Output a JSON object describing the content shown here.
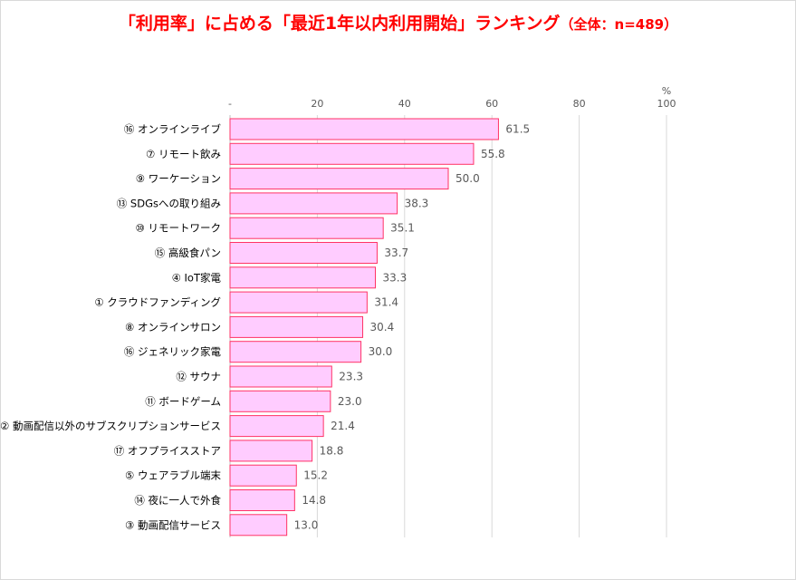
{
  "colors": {
    "title": "#ff0000",
    "bar_fill": "#ffccff",
    "bar_stroke": "#ff3366",
    "grid": "#d9d9d9"
  },
  "chart_data": {
    "type": "bar",
    "orientation": "horizontal",
    "title": "「利用率」に占める「最近1年以内利用開始」ランキング",
    "subtitle": "（全体：n=489）",
    "unit_label": "%",
    "xlim": [
      0,
      100
    ],
    "tick_labels": [
      "-",
      "20",
      "40",
      "60",
      "80",
      "100"
    ],
    "grid": true,
    "categories": [
      "⑯ オンラインライブ",
      "⑦ リモート飲み",
      "⑨ ワーケーション",
      "⑬ SDGsへの取り組み",
      "⑩ リモートワーク",
      "⑮ 高級食パン",
      "④ IoT家電",
      "① クラウドファンディング",
      "⑧ オンラインサロン",
      "⑯ ジェネリック家電",
      "⑫ サウナ",
      "⑪ ボードゲーム",
      "② 動画配信以外のサブスクリプションサービス",
      "⑰ オフプライスストア",
      "⑤ ウェアラブル端末",
      "⑭ 夜に一人で外食",
      "③ 動画配信サービス"
    ],
    "values": [
      61.5,
      55.8,
      50.0,
      38.3,
      35.1,
      33.7,
      33.3,
      31.4,
      30.4,
      30.0,
      23.3,
      23.0,
      21.4,
      18.8,
      15.2,
      14.8,
      13.0
    ],
    "value_labels": [
      "61.5",
      "55.8",
      "50.0",
      "38.3",
      "35.1",
      "33.7",
      "33.3",
      "31.4",
      "30.4",
      "30.0",
      "23.3",
      "23.0",
      "21.4",
      "18.8",
      "15.2",
      "14.8",
      "13.0"
    ]
  }
}
